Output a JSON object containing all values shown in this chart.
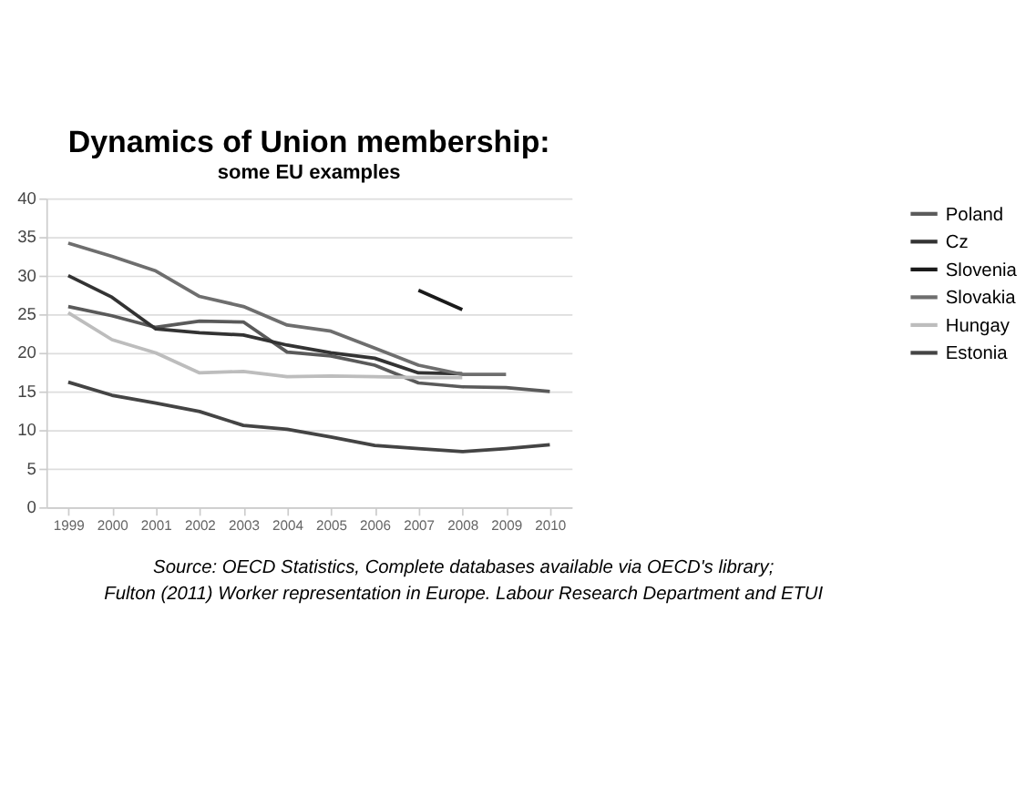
{
  "chart_data": {
    "type": "line",
    "title": "Dynamics of Union membership:",
    "subtitle": "some EU examples",
    "categories": [
      "1999",
      "2000",
      "2001",
      "2002",
      "2003",
      "2004",
      "2005",
      "2006",
      "2007",
      "2008",
      "2009",
      "2010"
    ],
    "series": [
      {
        "name": "Poland",
        "color": "#5a5a5a",
        "values": [
          26.0,
          24.8,
          23.3,
          24.1,
          24.0,
          20.1,
          19.6,
          18.4,
          16.1,
          15.6,
          15.5,
          15.0
        ]
      },
      {
        "name": "Cz",
        "color": "#333333",
        "values": [
          30.0,
          27.2,
          23.1,
          22.6,
          22.3,
          21.0,
          20.0,
          19.3,
          17.4,
          17.3,
          null,
          null
        ]
      },
      {
        "name": "Slovenia",
        "color": "#1a1a1a",
        "values": [
          null,
          null,
          null,
          null,
          null,
          null,
          null,
          null,
          28.1,
          25.6,
          null,
          null
        ]
      },
      {
        "name": "Slovakia",
        "color": "#6e6e6e",
        "values": [
          34.2,
          32.5,
          30.6,
          27.3,
          26.0,
          23.6,
          22.8,
          20.6,
          18.4,
          17.2,
          17.2,
          null
        ]
      },
      {
        "name": "Hungay",
        "color": "#bdbdbd",
        "values": [
          25.2,
          21.7,
          20.0,
          17.4,
          17.6,
          16.9,
          17.0,
          16.9,
          16.8,
          16.8,
          null,
          null
        ]
      },
      {
        "name": "Estonia",
        "color": "#444444",
        "values": [
          16.2,
          14.5,
          13.5,
          12.4,
          10.6,
          10.1,
          9.1,
          8.0,
          7.6,
          7.2,
          7.6,
          8.1
        ]
      }
    ],
    "ylim": [
      0,
      40
    ],
    "yticks": [
      0,
      5,
      10,
      15,
      20,
      25,
      30,
      35,
      40
    ],
    "grid": "y",
    "legend": "right",
    "line_style": "solid",
    "annotations": [
      "Source: OECD Statistics, Complete databases available via OECD's library;",
      "Fulton (2011) Worker representation in Europe. Labour Research Department and ETUI"
    ]
  }
}
